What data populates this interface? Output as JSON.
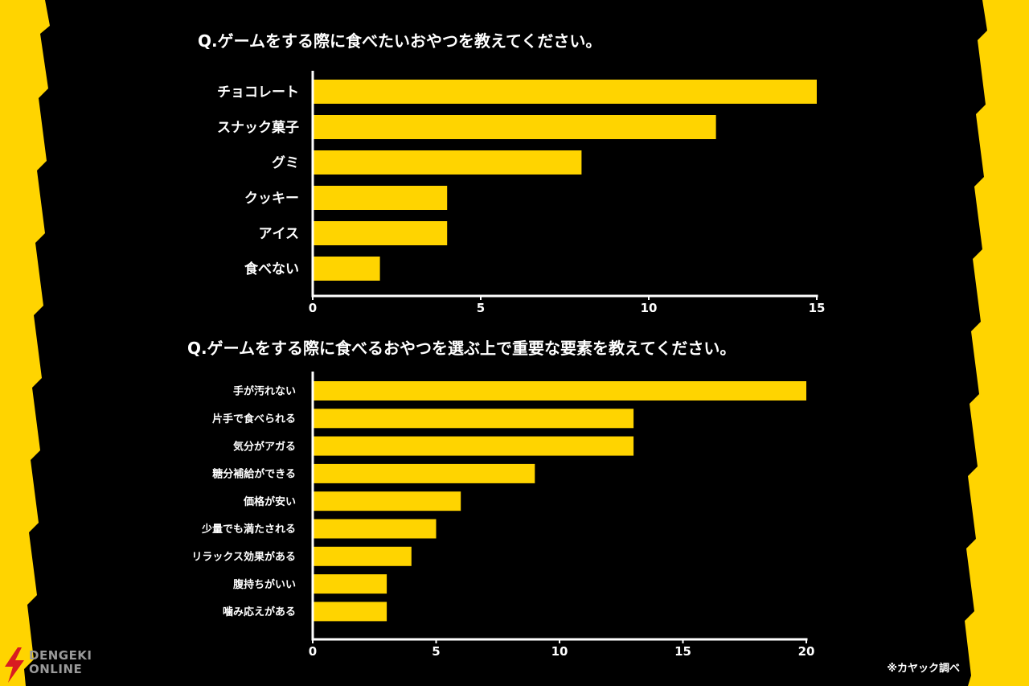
{
  "colors": {
    "background": "#000000",
    "bar": "#ffd400",
    "stripe": "#ffd400",
    "text": "#ffffff",
    "logo": "#d81b21"
  },
  "chart_data": [
    {
      "type": "bar",
      "orientation": "horizontal",
      "title": "Q.ゲームをする際に食べたいおやつを教えてください。",
      "categories": [
        "チョコレート",
        "スナック菓子",
        "グミ",
        "クッキー",
        "アイス",
        "食べない"
      ],
      "values": [
        15,
        12,
        8,
        4,
        4,
        2
      ],
      "xlim": [
        0,
        15
      ],
      "xticks": [
        0,
        5,
        10,
        15
      ],
      "grid": false,
      "legend": "none"
    },
    {
      "type": "bar",
      "orientation": "horizontal",
      "title": "Q.ゲームをする際に食べるおやつを選ぶ上で重要な要素を教えてください。",
      "categories": [
        "手が汚れない",
        "片手で食べられる",
        "気分がアガる",
        "糖分補給ができる",
        "価格が安い",
        "少量でも満たされる",
        "リラックス効果がある",
        "腹持ちがいい",
        "噛み応えがある"
      ],
      "values": [
        20,
        13,
        13,
        9,
        6,
        5,
        4,
        3,
        3
      ],
      "xlim": [
        0,
        20
      ],
      "xticks": [
        0,
        5,
        10,
        15,
        20
      ],
      "grid": false,
      "legend": "none"
    }
  ],
  "footer": {
    "source_note": "※カヤック調べ",
    "watermark_line1": "DENGEKI",
    "watermark_line2": "ONLINE"
  }
}
